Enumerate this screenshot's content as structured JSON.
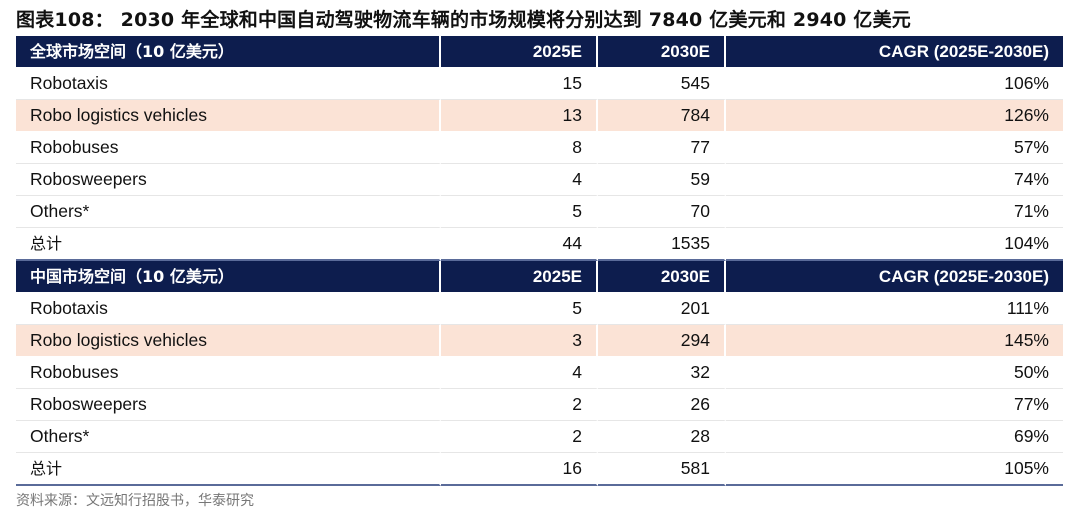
{
  "title": "图表108： 2030 年全球和中国自动驾驶物流车辆的市场规模将分别达到 7840 亿美元和 2940 亿美元",
  "global": {
    "header": [
      "全球市场空间（10 亿美元）",
      "2025E",
      "2030E",
      "CAGR (2025E-2030E)"
    ],
    "rows": [
      {
        "name": "Robotaxis",
        "v2025": "15",
        "v2030": "545",
        "cagr": "106%",
        "highlight": false
      },
      {
        "name": "Robo logistics vehicles",
        "v2025": "13",
        "v2030": "784",
        "cagr": "126%",
        "highlight": true
      },
      {
        "name": "Robobuses",
        "v2025": "8",
        "v2030": "77",
        "cagr": "57%",
        "highlight": false
      },
      {
        "name": "Robosweepers",
        "v2025": "4",
        "v2030": "59",
        "cagr": "74%",
        "highlight": false
      },
      {
        "name": "Others*",
        "v2025": "5",
        "v2030": "70",
        "cagr": "71%",
        "highlight": false
      }
    ],
    "total": {
      "name": "总计",
      "v2025": "44",
      "v2030": "1535",
      "cagr": "104%"
    }
  },
  "china": {
    "header": [
      "中国市场空间（10 亿美元）",
      "2025E",
      "2030E",
      "CAGR (2025E-2030E)"
    ],
    "rows": [
      {
        "name": "Robotaxis",
        "v2025": "5",
        "v2030": "201",
        "cagr": "111%",
        "highlight": false
      },
      {
        "name": "Robo logistics vehicles",
        "v2025": "3",
        "v2030": "294",
        "cagr": "145%",
        "highlight": true
      },
      {
        "name": "Robobuses",
        "v2025": "4",
        "v2030": "32",
        "cagr": "50%",
        "highlight": false
      },
      {
        "name": "Robosweepers",
        "v2025": "2",
        "v2030": "26",
        "cagr": "77%",
        "highlight": false
      },
      {
        "name": "Others*",
        "v2025": "2",
        "v2030": "28",
        "cagr": "69%",
        "highlight": false
      }
    ],
    "total": {
      "name": "总计",
      "v2025": "16",
      "v2030": "581",
      "cagr": "105%"
    }
  },
  "source": "资料来源：文远知行招股书，华泰研究",
  "colors": {
    "header_bg": "#0d1d4e",
    "highlight_bg": "#fbe3d6"
  }
}
